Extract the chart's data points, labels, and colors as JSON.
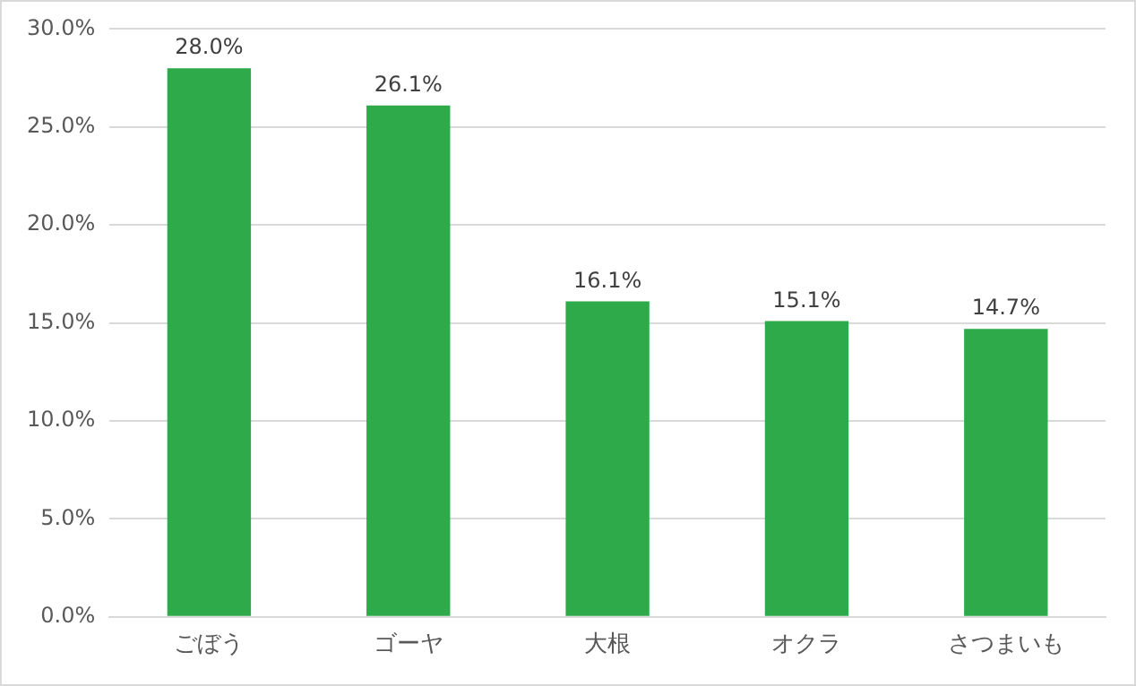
{
  "chart_data": {
    "type": "bar",
    "categories": [
      "ごぼう",
      "ゴーヤ",
      "大根",
      "オクラ",
      "さつまいも"
    ],
    "values": [
      28.0,
      26.1,
      16.1,
      15.1,
      14.7
    ],
    "color": "#2eaa4a",
    "value_labels": [
      "28.0%",
      "26.1%",
      "16.1%",
      "15.1%",
      "14.7%"
    ],
    "ylim": [
      0,
      30
    ],
    "yticks": [
      {
        "value": 0,
        "label": "0.0%"
      },
      {
        "value": 5,
        "label": "5.0%"
      },
      {
        "value": 10,
        "label": "10.0%"
      },
      {
        "value": 15,
        "label": "15.0%"
      },
      {
        "value": 20,
        "label": "20.0%"
      },
      {
        "value": 25,
        "label": "25.0%"
      },
      {
        "value": 30,
        "label": "30.0%"
      }
    ],
    "grid": "y",
    "legend": false
  }
}
